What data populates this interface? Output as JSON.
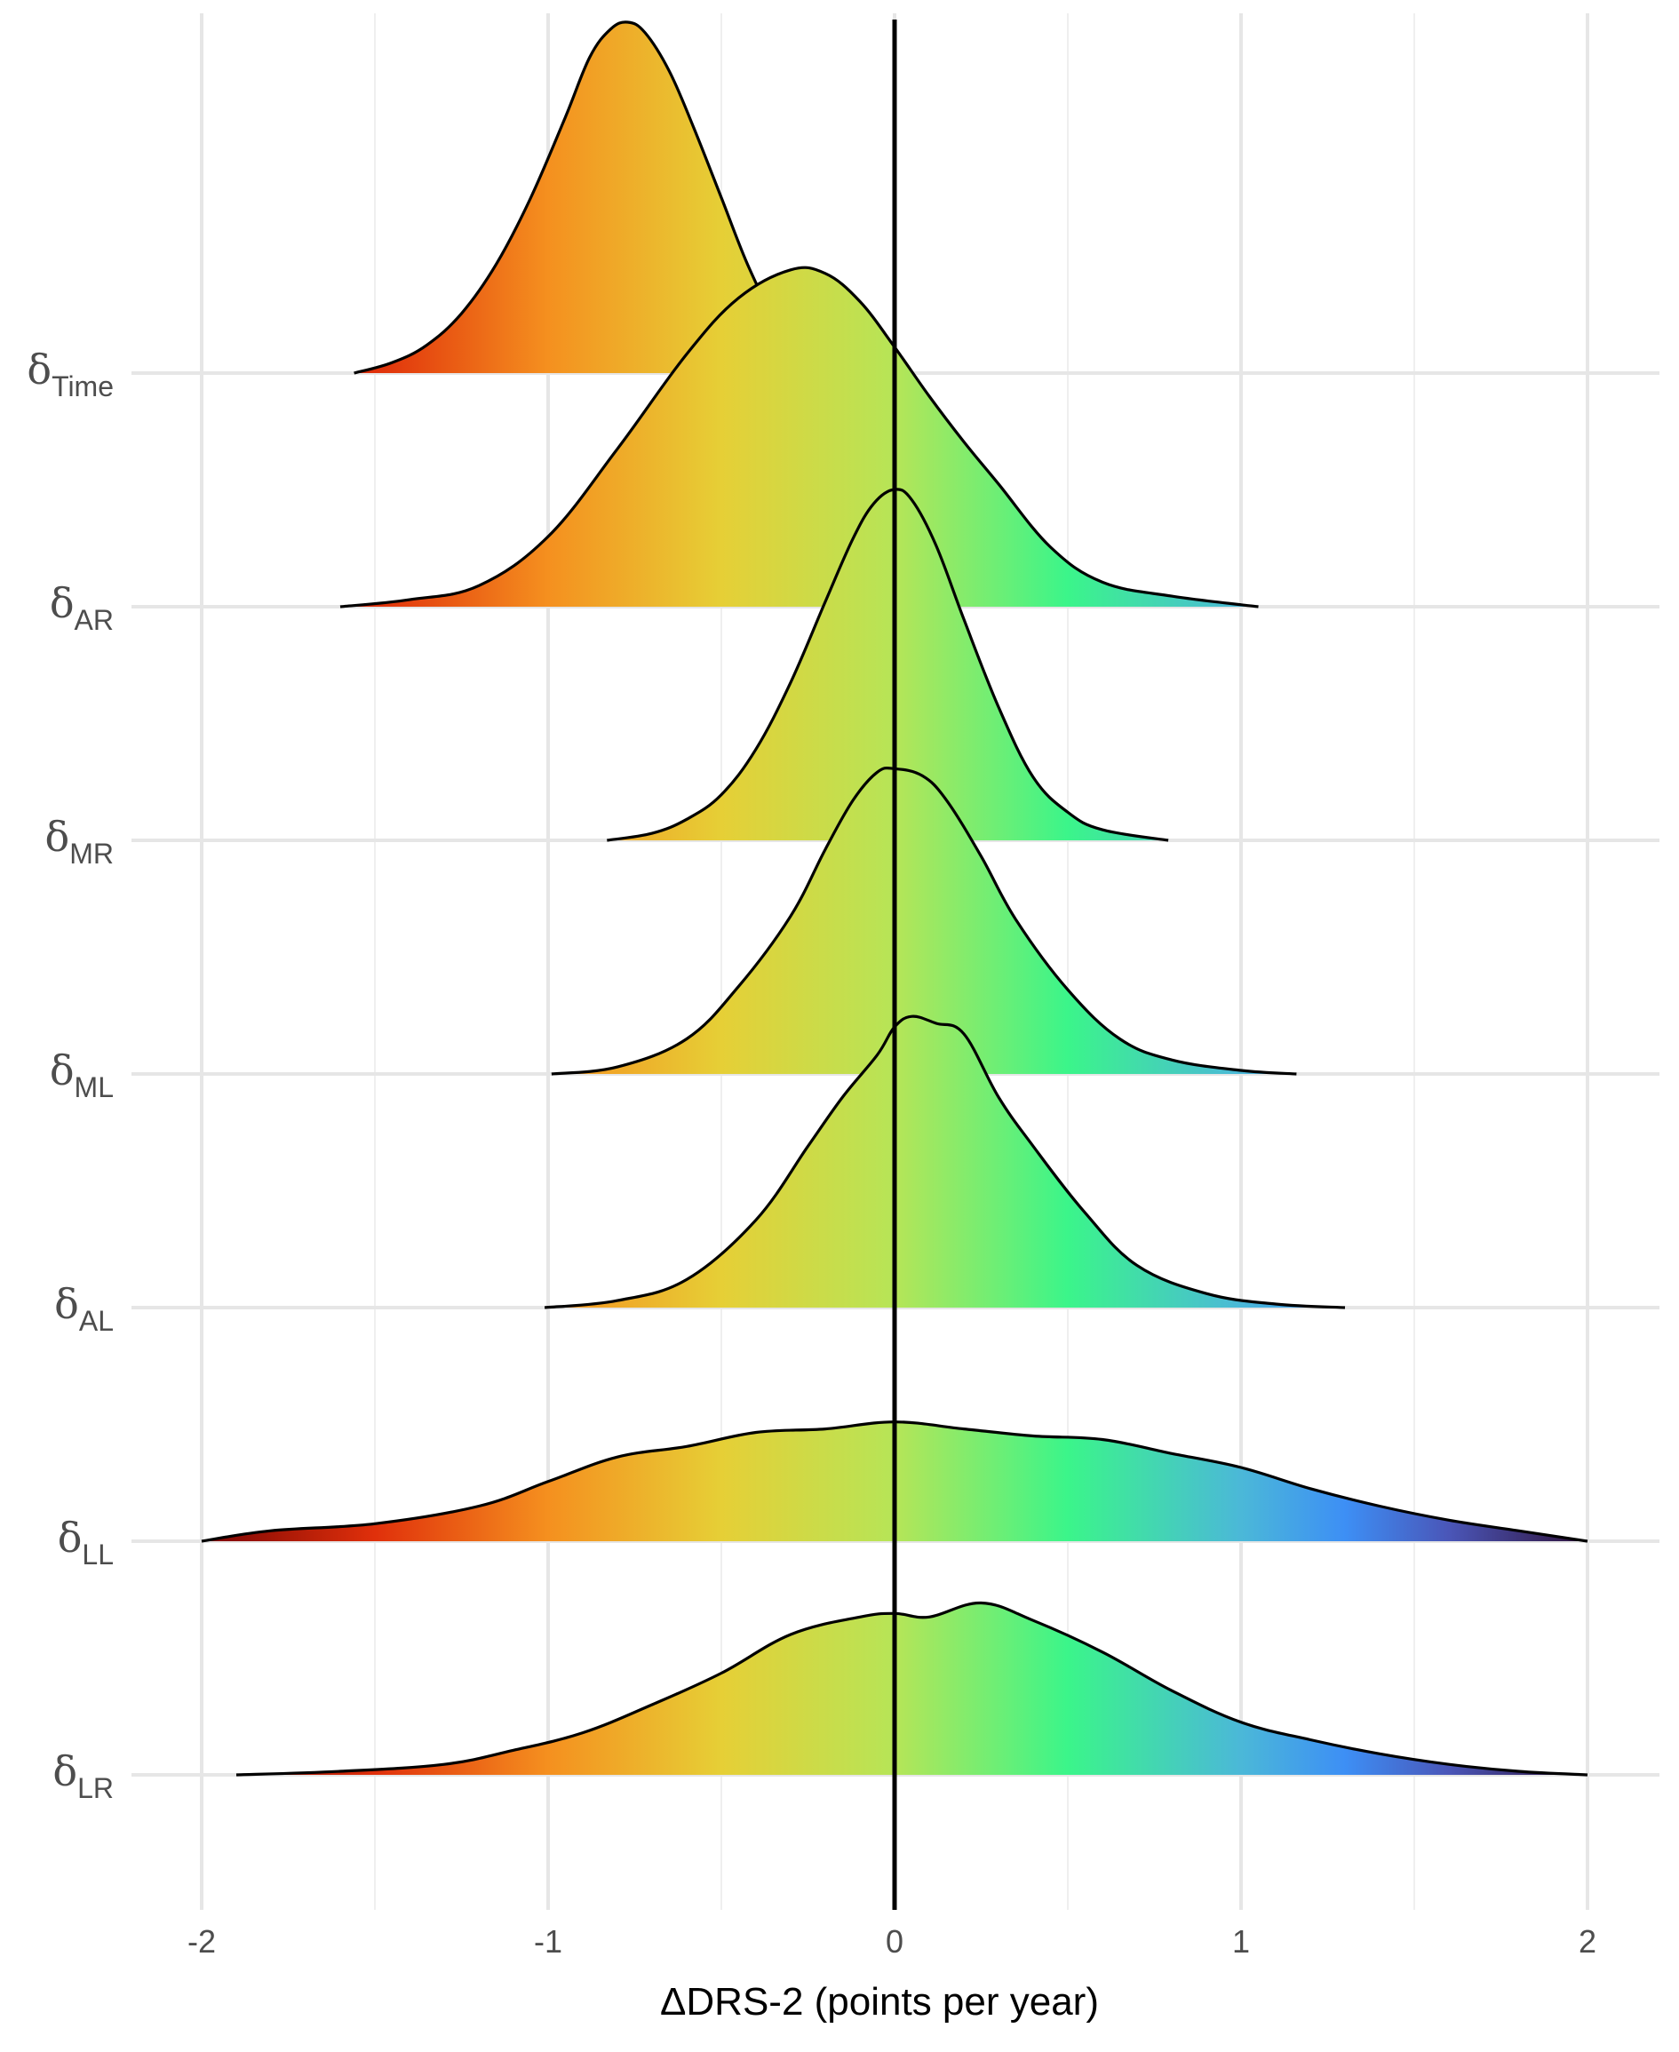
{
  "chart_data": {
    "type": "ridgeline",
    "xlabel": "ΔDRS-2 (points per year)",
    "x_ticks": [
      -2,
      -1,
      0,
      1,
      2
    ],
    "xlim": [
      -2.1,
      2.1
    ],
    "reference_line_x": 0,
    "grid": true,
    "color_scale": {
      "stops": [
        {
          "x": -2.0,
          "color": "#7a0403"
        },
        {
          "x": -1.5,
          "color": "#e0300b"
        },
        {
          "x": -1.0,
          "color": "#f5901f"
        },
        {
          "x": -0.5,
          "color": "#e6cf36"
        },
        {
          "x": 0.0,
          "color": "#b6e557"
        },
        {
          "x": 0.5,
          "color": "#3bf58a"
        },
        {
          "x": 1.0,
          "color": "#4bb8d8"
        },
        {
          "x": 1.3,
          "color": "#3d8ff5"
        },
        {
          "x": 1.6,
          "color": "#4a56b8"
        },
        {
          "x": 2.0,
          "color": "#30123b"
        }
      ]
    },
    "series": [
      {
        "symbol": "δ",
        "sub": "Time",
        "range": [
          -1.56,
          0.0
        ],
        "x": [
          -1.56,
          -1.45,
          -1.35,
          -1.25,
          -1.15,
          -1.05,
          -0.95,
          -0.88,
          -0.82,
          -0.77,
          -0.72,
          -0.65,
          -0.58,
          -0.5,
          -0.42,
          -0.34,
          -0.25,
          -0.15,
          -0.05,
          0.0
        ],
        "y": [
          0.0,
          0.03,
          0.08,
          0.17,
          0.31,
          0.5,
          0.73,
          0.9,
          0.98,
          1.0,
          0.97,
          0.86,
          0.7,
          0.5,
          0.3,
          0.15,
          0.07,
          0.03,
          0.01,
          0.0
        ]
      },
      {
        "symbol": "δ",
        "sub": "AR",
        "range": [
          -1.6,
          1.05
        ],
        "x": [
          -1.6,
          -1.4,
          -1.2,
          -1.0,
          -0.8,
          -0.6,
          -0.45,
          -0.3,
          -0.2,
          -0.1,
          0.0,
          0.1,
          0.2,
          0.3,
          0.45,
          0.6,
          0.8,
          1.05
        ],
        "y": [
          0.0,
          0.02,
          0.06,
          0.2,
          0.45,
          0.72,
          0.88,
          0.96,
          0.95,
          0.87,
          0.74,
          0.6,
          0.47,
          0.35,
          0.17,
          0.07,
          0.03,
          0.0
        ]
      },
      {
        "symbol": "δ",
        "sub": "MR",
        "range": [
          -0.83,
          0.79
        ],
        "x": [
          -0.83,
          -0.7,
          -0.6,
          -0.5,
          -0.4,
          -0.3,
          -0.2,
          -0.12,
          -0.06,
          0.0,
          0.05,
          0.12,
          0.2,
          0.3,
          0.4,
          0.5,
          0.6,
          0.79
        ],
        "y": [
          0.0,
          0.02,
          0.06,
          0.13,
          0.26,
          0.45,
          0.68,
          0.86,
          0.96,
          1.0,
          0.97,
          0.84,
          0.63,
          0.38,
          0.18,
          0.08,
          0.03,
          0.0
        ]
      },
      {
        "symbol": "δ",
        "sub": "ML",
        "range": [
          -0.99,
          1.16
        ],
        "x": [
          -0.99,
          -0.8,
          -0.6,
          -0.45,
          -0.3,
          -0.2,
          -0.12,
          -0.05,
          0.0,
          0.08,
          0.15,
          0.25,
          0.35,
          0.5,
          0.65,
          0.8,
          1.0,
          1.16
        ],
        "y": [
          0.0,
          0.02,
          0.1,
          0.25,
          0.45,
          0.64,
          0.78,
          0.86,
          0.87,
          0.85,
          0.78,
          0.62,
          0.44,
          0.24,
          0.1,
          0.04,
          0.01,
          0.0
        ]
      },
      {
        "symbol": "δ",
        "sub": "AL",
        "range": [
          -1.01,
          1.3
        ],
        "x": [
          -1.01,
          -0.8,
          -0.6,
          -0.4,
          -0.25,
          -0.15,
          -0.05,
          0.0,
          0.05,
          0.12,
          0.2,
          0.3,
          0.4,
          0.55,
          0.7,
          0.9,
          1.1,
          1.3
        ],
        "y": [
          0.0,
          0.02,
          0.08,
          0.25,
          0.46,
          0.6,
          0.72,
          0.8,
          0.83,
          0.81,
          0.78,
          0.6,
          0.46,
          0.27,
          0.12,
          0.04,
          0.01,
          0.0
        ]
      },
      {
        "symbol": "δ",
        "sub": "LL",
        "range": [
          -2.0,
          2.0
        ],
        "x": [
          -2.0,
          -1.8,
          -1.5,
          -1.2,
          -1.0,
          -0.8,
          -0.6,
          -0.4,
          -0.2,
          0.0,
          0.2,
          0.4,
          0.6,
          0.8,
          1.0,
          1.2,
          1.4,
          1.6,
          1.8,
          2.0
        ],
        "y": [
          0.0,
          0.03,
          0.05,
          0.1,
          0.17,
          0.24,
          0.27,
          0.31,
          0.32,
          0.34,
          0.32,
          0.3,
          0.29,
          0.25,
          0.21,
          0.15,
          0.1,
          0.06,
          0.03,
          0.0
        ]
      },
      {
        "symbol": "δ",
        "sub": "LR",
        "range": [
          -1.9,
          2.0
        ],
        "x": [
          -1.9,
          -1.6,
          -1.3,
          -1.1,
          -0.9,
          -0.7,
          -0.5,
          -0.3,
          -0.1,
          0.0,
          0.1,
          0.25,
          0.4,
          0.6,
          0.8,
          1.0,
          1.2,
          1.4,
          1.6,
          1.8,
          2.0
        ],
        "y": [
          0.0,
          0.01,
          0.03,
          0.07,
          0.12,
          0.2,
          0.29,
          0.4,
          0.45,
          0.46,
          0.45,
          0.49,
          0.44,
          0.35,
          0.24,
          0.15,
          0.1,
          0.06,
          0.03,
          0.01,
          0.0
        ]
      }
    ]
  }
}
